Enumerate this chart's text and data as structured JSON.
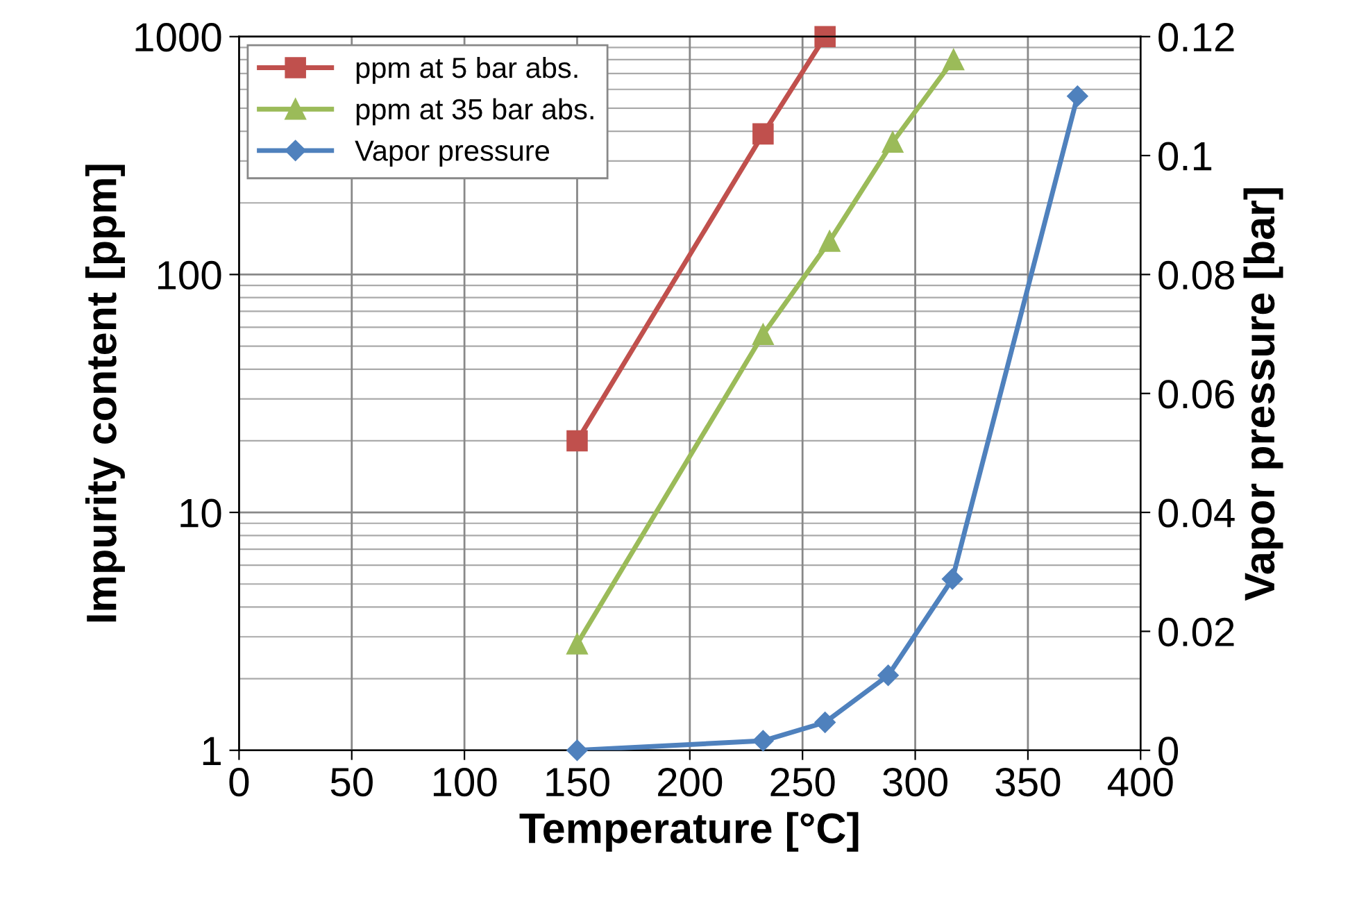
{
  "chart_data": {
    "type": "line",
    "xlabel": "Temperature [°C]",
    "ylabel": "Impurity content [ppm]",
    "y2label": "Vapor pressure [bar]",
    "xlim": [
      0,
      400
    ],
    "xticks": [
      0,
      50,
      100,
      150,
      200,
      250,
      300,
      350,
      400
    ],
    "ylim": [
      1,
      1000
    ],
    "yticks": [
      1,
      10,
      100,
      1000
    ],
    "log": "y",
    "y2lim": [
      0,
      0.12
    ],
    "y2ticks": [
      0,
      0.02,
      0.04,
      0.06,
      0.08,
      0.1,
      0.12
    ],
    "grid": true,
    "legend": "top left",
    "series": [
      {
        "name": "ppm at 5 bar abs.",
        "color": "#c0504d",
        "marker": "square",
        "x": [
          150,
          232.5,
          260
        ],
        "values": [
          20,
          390,
          1000
        ]
      },
      {
        "name": "ppm at 35 bar abs.",
        "color": "#9bbb59",
        "marker": "triangle",
        "x": [
          150,
          232.5,
          262,
          290,
          317
        ],
        "values": [
          2.8,
          56,
          138,
          360,
          800
        ]
      },
      {
        "name": "Vapor pressure",
        "color": "#4f81bd",
        "marker": "diamond",
        "axis": "y2",
        "x": [
          150,
          232.5,
          260,
          288,
          316.5,
          372
        ],
        "values": [
          0,
          0.0016,
          0.0047,
          0.0126,
          0.0288,
          0.11
        ]
      }
    ]
  }
}
